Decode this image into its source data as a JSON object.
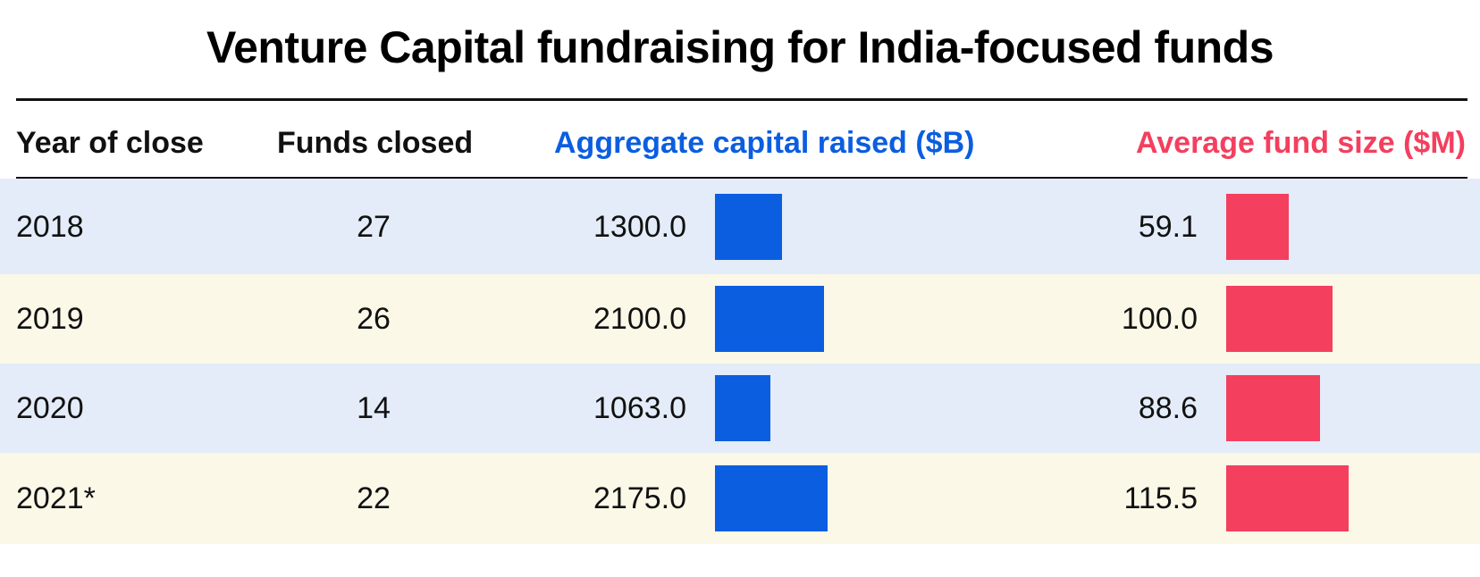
{
  "title": "Venture Capital fundraising for India-focused funds",
  "colors": {
    "aggregate": "#0b5ee0",
    "average": "#f43f5e",
    "row_blue": "#e3ecf8",
    "row_cream": "#fbf8e8"
  },
  "headers": {
    "year": "Year of close",
    "funds": "Funds closed",
    "aggregate": "Aggregate capital raised ($B)",
    "average": "Average fund size ($M)"
  },
  "rows": [
    {
      "year": "2018",
      "funds": "27",
      "aggregate": "1300.0",
      "average": "59.1"
    },
    {
      "year": "2019",
      "funds": "26",
      "aggregate": "2100.0",
      "average": "100.0"
    },
    {
      "year": "2020",
      "funds": "14",
      "aggregate": "1063.0",
      "average": "88.6"
    },
    {
      "year": "2021*",
      "funds": "22",
      "aggregate": "2175.0",
      "average": "115.5"
    }
  ],
  "chart_data": {
    "type": "table",
    "title": "Venture Capital fundraising for India-focused funds",
    "columns": [
      "Year of close",
      "Funds closed",
      "Aggregate capital raised ($B)",
      "Average fund size ($M)"
    ],
    "categories": [
      "2018",
      "2019",
      "2020",
      "2021*"
    ],
    "series": [
      {
        "name": "Funds closed",
        "values": [
          27,
          26,
          14,
          22
        ]
      },
      {
        "name": "Aggregate capital raised ($B)",
        "values": [
          1300.0,
          2100.0,
          1063.0,
          2175.0
        ]
      },
      {
        "name": "Average fund size ($M)",
        "values": [
          59.1,
          100.0,
          88.6,
          115.5
        ]
      }
    ]
  }
}
